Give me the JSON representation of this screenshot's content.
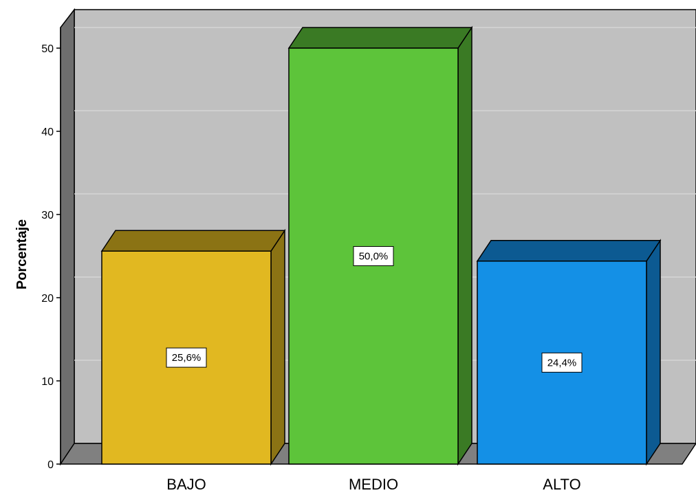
{
  "chart_data": {
    "type": "bar",
    "title": "",
    "xlabel": "",
    "ylabel": "Porcentaje",
    "categories": [
      "BAJO",
      "MEDIO",
      "ALTO"
    ],
    "values": [
      25.6,
      50.0,
      24.4
    ],
    "data_labels": [
      "25,6%",
      "50,0%",
      "24,4%"
    ],
    "ylim": [
      0,
      50
    ],
    "yticks": [
      "0",
      "10",
      "20",
      "30",
      "40",
      "50"
    ],
    "grid": true,
    "style": "3d",
    "colors": {
      "bars": [
        "#e1b821",
        "#5dc43a",
        "#1490e6"
      ],
      "bar_tops": [
        "#8b7314",
        "#3a7a24",
        "#0c5a92"
      ],
      "wall": "#c0c0c0",
      "floor": "#808080",
      "left_wall": "#6e6e6e",
      "gridline": "#d6d6d6"
    }
  }
}
